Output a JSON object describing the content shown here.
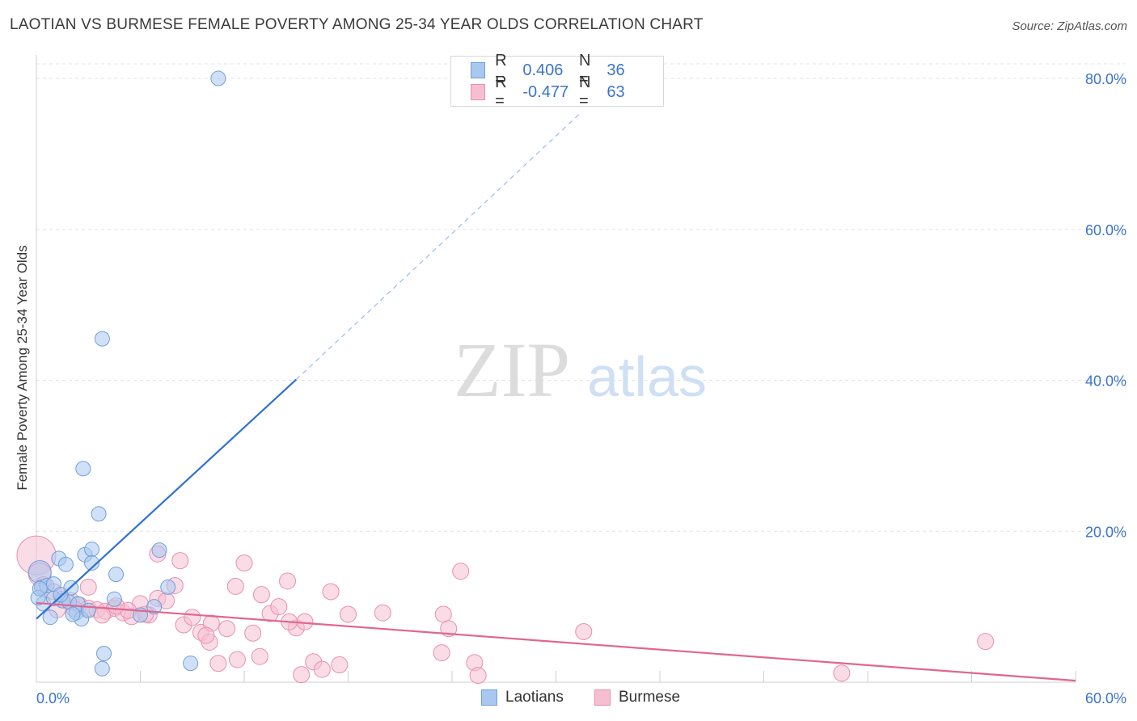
{
  "header": {
    "title": "LAOTIAN VS BURMESE FEMALE POVERTY AMONG 25-34 YEAR OLDS CORRELATION CHART",
    "source": "Source: ZipAtlas.com"
  },
  "watermark": {
    "zip": "ZIP",
    "atlas": "atlas"
  },
  "legend_stats": {
    "rows": [
      {
        "r_label": "R =",
        "r_value": "0.406",
        "n_label": "N =",
        "n_value": "36"
      },
      {
        "r_label": "R =",
        "r_value": "-0.477",
        "n_label": "N =",
        "n_value": "63"
      }
    ]
  },
  "colors": {
    "laotian_fill": "#a9c8f0",
    "laotian_stroke": "#6f9fd8",
    "laotian_line": "#2e72d2",
    "burmese_fill": "#f6bfd1",
    "burmese_stroke": "#e98fb0",
    "burmese_line": "#e0668f",
    "grid": "#e3e3e3",
    "tick_label": "#3b74c9"
  },
  "chart_data": {
    "type": "scatter",
    "title": "LAOTIAN VS BURMESE FEMALE POVERTY AMONG 25-34 YEAR OLDS CORRELATION CHART",
    "xlabel": "",
    "ylabel": "Female Poverty Among 25-34 Year Olds",
    "xlim": [
      0,
      60
    ],
    "ylim": [
      0,
      80
    ],
    "x_tick_labels": [
      "0.0%",
      "60.0%"
    ],
    "y_ticks": [
      {
        "value": 80,
        "label": "80.0%"
      },
      {
        "value": 60,
        "label": "60.0%"
      },
      {
        "value": 40,
        "label": "40.0%"
      },
      {
        "value": 20,
        "label": "20.0%"
      }
    ],
    "grid": true,
    "legend_position": "bottom-center",
    "series": [
      {
        "name": "Laotians",
        "r": 0.406,
        "n": 36,
        "trend": {
          "x0": 0.0,
          "y0": 8.4,
          "x1": 15.0,
          "y1": 40.1,
          "dashed_to_x": 31.5,
          "dashed_to_y": 75.6
        },
        "points": [
          [
            10.5,
            80.0
          ],
          [
            3.8,
            45.5
          ],
          [
            2.7,
            28.3
          ],
          [
            3.6,
            22.3
          ],
          [
            1.3,
            16.4
          ],
          [
            1.7,
            15.6
          ],
          [
            2.8,
            16.9
          ],
          [
            3.2,
            17.6
          ],
          [
            3.2,
            15.8
          ],
          [
            7.1,
            17.5
          ],
          [
            4.6,
            14.3
          ],
          [
            0.2,
            14.6
          ],
          [
            0.3,
            12.6
          ],
          [
            0.6,
            12.8
          ],
          [
            1.0,
            13.0
          ],
          [
            2.0,
            12.5
          ],
          [
            7.6,
            12.6
          ],
          [
            1.5,
            10.8
          ],
          [
            0.4,
            10.4
          ],
          [
            1.0,
            11.1
          ],
          [
            1.9,
            10.6
          ],
          [
            2.4,
            10.4
          ],
          [
            0.8,
            8.6
          ],
          [
            2.3,
            9.2
          ],
          [
            2.6,
            8.4
          ],
          [
            4.5,
            11.0
          ],
          [
            6.8,
            10.0
          ],
          [
            6.0,
            8.9
          ],
          [
            2.1,
            9.0
          ],
          [
            3.0,
            9.5
          ],
          [
            3.9,
            3.8
          ],
          [
            3.8,
            1.8
          ],
          [
            8.9,
            2.5
          ],
          [
            0.1,
            11.2
          ],
          [
            1.4,
            11.6
          ],
          [
            0.2,
            12.4
          ]
        ]
      },
      {
        "name": "Burmese",
        "r": -0.477,
        "n": 63,
        "trend": {
          "x0": 0.0,
          "y0": 10.5,
          "x1": 60.0,
          "y1": 0.2
        },
        "points": [
          [
            0.0,
            16.8
          ],
          [
            0.2,
            14.3
          ],
          [
            0.4,
            12.9
          ],
          [
            1.0,
            12.0
          ],
          [
            1.5,
            11.0
          ],
          [
            2.0,
            10.8
          ],
          [
            2.5,
            10.2
          ],
          [
            3.0,
            9.8
          ],
          [
            3.5,
            9.6
          ],
          [
            4.0,
            9.4
          ],
          [
            4.5,
            9.8
          ],
          [
            5.0,
            9.2
          ],
          [
            5.5,
            8.7
          ],
          [
            6.0,
            10.4
          ],
          [
            6.5,
            8.9
          ],
          [
            7.0,
            11.1
          ],
          [
            7.5,
            10.8
          ],
          [
            8.0,
            12.8
          ],
          [
            8.5,
            7.6
          ],
          [
            9.0,
            8.6
          ],
          [
            9.5,
            6.6
          ],
          [
            10.0,
            5.3
          ],
          [
            10.5,
            2.5
          ],
          [
            11.0,
            7.1
          ],
          [
            11.5,
            12.7
          ],
          [
            12.0,
            15.8
          ],
          [
            12.5,
            6.5
          ],
          [
            13.0,
            11.6
          ],
          [
            13.5,
            9.1
          ],
          [
            14.0,
            10.0
          ],
          [
            14.5,
            13.4
          ],
          [
            15.0,
            7.2
          ],
          [
            15.5,
            8.0
          ],
          [
            16.0,
            2.7
          ],
          [
            16.5,
            1.7
          ],
          [
            17.0,
            12.0
          ],
          [
            17.5,
            2.3
          ],
          [
            18.0,
            9.0
          ],
          [
            7.0,
            17.0
          ],
          [
            8.3,
            16.1
          ],
          [
            3.0,
            12.6
          ],
          [
            5.3,
            9.5
          ],
          [
            6.3,
            9.0
          ],
          [
            1.2,
            9.6
          ],
          [
            2.2,
            9.7
          ],
          [
            10.1,
            7.8
          ],
          [
            11.6,
            3.0
          ],
          [
            14.6,
            8.0
          ],
          [
            20.0,
            9.2
          ],
          [
            23.5,
            9.0
          ],
          [
            23.8,
            7.1
          ],
          [
            23.4,
            3.9
          ],
          [
            24.5,
            14.7
          ],
          [
            25.3,
            2.6
          ],
          [
            25.5,
            0.9
          ],
          [
            31.6,
            6.7
          ],
          [
            46.5,
            1.2
          ],
          [
            54.8,
            5.4
          ],
          [
            9.8,
            6.2
          ],
          [
            12.9,
            3.4
          ],
          [
            3.8,
            8.9
          ],
          [
            4.6,
            10.1
          ],
          [
            15.3,
            1.0
          ]
        ]
      }
    ]
  },
  "legend_bottom": {
    "items": [
      "Laotians",
      "Burmese"
    ]
  }
}
